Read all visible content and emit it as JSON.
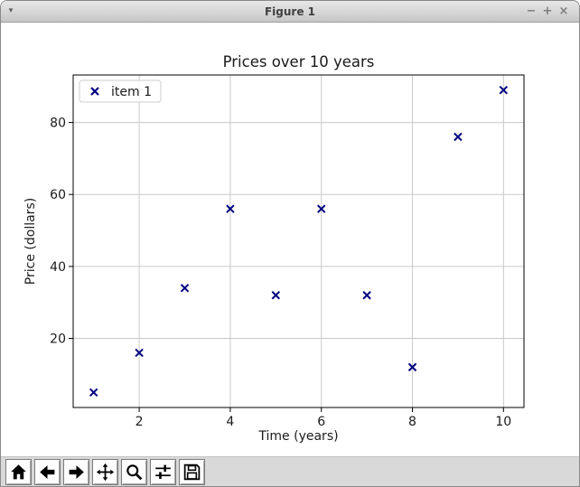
{
  "window": {
    "title": "Figure 1",
    "menu_glyph": "▾",
    "minimize_glyph": "−",
    "maximize_glyph": "+",
    "close_glyph": "×"
  },
  "chart_data": {
    "type": "scatter",
    "title": "Prices over 10 years",
    "xlabel": "Time (years)",
    "ylabel": "Price (dollars)",
    "series": [
      {
        "name": "item 1",
        "marker": "x",
        "color": "#000080",
        "x": [
          1,
          2,
          3,
          4,
          5,
          6,
          7,
          8,
          9,
          10
        ],
        "y": [
          5,
          16,
          34,
          56,
          32,
          56,
          32,
          12,
          76,
          89
        ]
      }
    ],
    "xticks": [
      2,
      4,
      6,
      8,
      10
    ],
    "yticks": [
      20,
      40,
      60,
      80
    ],
    "xlim": [
      0.55,
      10.45
    ],
    "ylim": [
      0.8,
      93.2
    ],
    "grid": true,
    "legend_position": "upper left",
    "legend_labels": [
      "item 1"
    ]
  },
  "toolbar": {
    "buttons": [
      {
        "name": "home-button",
        "icon": "home-icon"
      },
      {
        "name": "back-button",
        "icon": "back-icon"
      },
      {
        "name": "forward-button",
        "icon": "forward-icon"
      },
      {
        "name": "pan-button",
        "icon": "pan-icon"
      },
      {
        "name": "zoom-button",
        "icon": "zoom-icon"
      },
      {
        "name": "configure-subplots-button",
        "icon": "subplots-icon"
      },
      {
        "name": "save-button",
        "icon": "save-icon"
      }
    ]
  },
  "colors": {
    "marker": "#000080",
    "grid": "#c9c9c9",
    "spine": "#000000",
    "chart_text": "#1a1a1a",
    "legend_border": "#cccccc",
    "titlebar_text": "#404040",
    "toolbar_bg": "#d9d9d9"
  }
}
